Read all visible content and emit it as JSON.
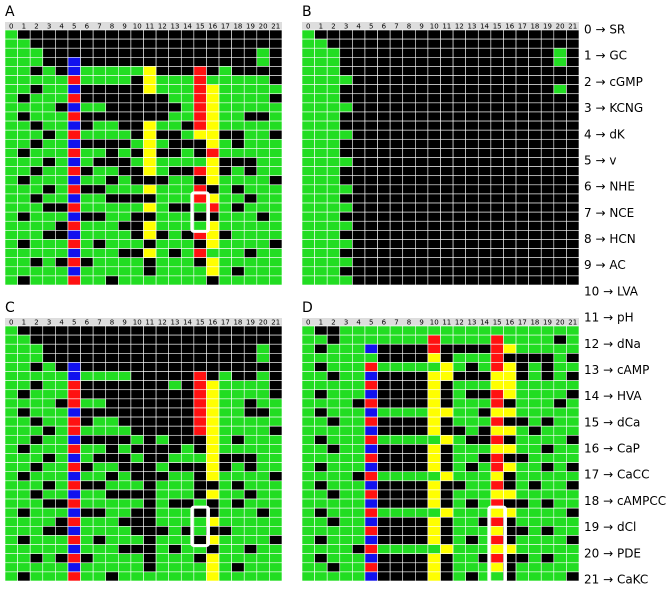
{
  "columns": [
    0,
    1,
    2,
    3,
    4,
    5,
    6,
    7,
    8,
    9,
    10,
    11,
    12,
    13,
    14,
    15,
    16,
    17,
    18,
    19,
    20,
    21
  ],
  "palette": {
    "k": "#000000",
    "g": "#22dd22",
    "r": "#ff1111",
    "b": "#1111ee",
    "y": "#ffff00"
  },
  "panels": [
    {
      "label": "A",
      "rows": [
        "gkkkkkkkkkkkkkkkkkkkkk",
        "ggkkkkkkkkkkkkkkkkkkkk",
        "gggkkkkkkkkkkkkkkkkkgk",
        "gggkkbkkkkkkkkkkkkkkgk",
        "ggkgkbgggggykkkrkgkkkk",
        "gggggrggggkygggrgggggk",
        "ggkggbkkkkkygggryggggg",
        "gkgggrkkkkkkkggryggggk",
        "ggggkbggkkkkkkgryggggg",
        "gkgggrkkkkkkkggryggkkg",
        "ggkggbkggkkyggkryggggg",
        "gggkgrggggkykkgyykkggk",
        "ggkggbkkkkgygkkkygkggg",
        "gkgggrggkgkykkgkrggggg",
        "gggkgbgkkkgyggggykkkgg",
        "ggkggrkggkkygkkrykgkgg",
        "gkgggbggkgkkkggkyggggk",
        "gggkgrkkgggygggrkgkggg",
        "ggkggbggkkkkgggryggkgg",
        "gggkkrgggggygkkgrgkggg",
        "gkgggbkkggkkgggkkgggkg",
        "ggggkrgggkkyggggyggggg",
        "gggkkbggggkykgkrykgggg",
        "gkgggrgkgggkgggkyggggk",
        "gggggbgggkkygkgrgggkgg",
        "ggkgkrkggggkgggkyggggg",
        "gggggbgggggkggggygkggg",
        "gkgggrggkgggggggkggggg"
      ]
    },
    {
      "label": "B",
      "rows": [
        "gkkkkkkkkkkkkkkkkkkkkk",
        "ggkkkkkkkkkkkkkkkkkkkk",
        "gggkkkkkkkkkkkkkkkkkgk",
        "gggkkkkkkkkkkkkkkkkkgk",
        "gggkkkkkkkkkkkkkkkkkkk",
        "ggggkkkkkkkkkkkkkkkkkk",
        "gggkkkkkkkkkkkkkkkkkgk",
        "gggkkkkkkkkkkkkkkkkkkk",
        "ggggkkkkkkkkkkkkkkkkkk",
        "gggkkkkkkkkkkkkkkkkkkk",
        "gggkkkkkkkkkkkkkkkkkkk",
        "ggggkkkkkkkkkkkkkkkkkk",
        "gggkkkkkkkkkkkkkkkkkkk",
        "gggkkkkkkkkkkkkkkkkkkk",
        "ggggkkkkkkkkkkkkkkkkkk",
        "gggkkkkkkkkkkkkkkkkkkk",
        "gggkkkkkkkkkkkkkkkkkkk",
        "ggggkkkkkkkkkkkkkkkkkk",
        "gggkkkkkkkkkkkkkkkkkkk",
        "ggggkkkkkkkkkkkkkkkkkk",
        "gggkkkkkkkkkkkkkkkkkkk",
        "ggggkkkkkkkkkkkkkkkkkk",
        "gggkkkkkkkkkkkkkkkkkkk",
        "ggggkkkkkkkkkkkkkkkkkk",
        "gggkkkkkkkkkkkkkkkkkkk",
        "ggggkkkkkkkkkkkkkkkkkk",
        "gggkkkkkkkkkkkkkkkkkkk",
        "ggggkkkkkkkkkkkkkkkkkk"
      ]
    },
    {
      "label": "C",
      "rows": [
        "gkkkkkkkkkkkkkkkkkkkkk",
        "ggkkkkkkkkkkkkkkkkkkkk",
        "gggkkkkkkkkkkkkkkkkkgk",
        "gggkkkkkkkkkkkkkkkkkgk",
        "ggkgkbkkkkkkkkkkkkkkkk",
        "gggggbggggkkkkkrkgkkgk",
        "ggkggrkkkkkkkgkryggggk",
        "gkgggrkkkkkkkkkryggggk",
        "ggggkrggkkkkkkkryggkgg",
        "gkgggbkkkkkkkkkryggkkg",
        "ggkggrkggkkkkkkryggggg",
        "gggkgrggggkkkkkryggggk",
        "ggkggbkkkkgkgkkkygkggg",
        "gkgggrggkgkkkkgkyggggg",
        "gggkgbgkkkgkkgggykkkgg",
        "ggkggrkggkkkgkkkykgkgg",
        "gkgggbggkgkkkggkyggggk",
        "gggkgrkkgggkgggkkgkggg",
        "ggkggbggkkkkgggkyggkgg",
        "gggkkrgggggkgkkgkgkggg",
        "gkgggbkkggkkgggkkgggkg",
        "ggggkrgggkkkggggyggggg",
        "gggkkbggggkkkgkgkkgggg",
        "gkgggrgkgggkgggkyggggk",
        "gggggbgggkkkgkggkggkgg",
        "ggkgkrkggggkgggkyggggg",
        "gggggbgggggkggggygkggg",
        "gkgggrggkgggggggyggggg"
      ]
    },
    {
      "label": "D",
      "rows": [
        "gkkggggggggggggggggggg",
        "ggkgggggggrggggrggggkg",
        "gkgggbkkkkrkkkkryggggg",
        "ggggggkkkkykgggrkkkkgk",
        "gkgggrgggggygkgrykgkgg",
        "ggkggbkkkkyykkkyykgkgk",
        "gggggrkkkkykgggyyggggg",
        "gkgggbkkkkykgkkryggggk",
        "ggggkrkkkkykgggrkgggkg",
        "gkgggbggggyyggkyyggggg",
        "ggkggrkkkkykgggrkkgkgg",
        "gggggbkkkkykkgkyygkggg",
        "gkgggrgggggygkkrkggggk",
        "ggkggbkkkkykgggyyggkgg",
        "gggggrkkkkykggkrkkgggg",
        "gkgggbkkkkykgkgryggkgk",
        "ggggkrgggggygggykggggg",
        "gkgggbkkkkykkggrkgkggk",
        "ggkggrkkkkykgggyyggggg",
        "gggggbkkkkykgkgrkkgkgg",
        "gkgggrgggggygggyyggggk",
        "ggkggbkkkkykggkrkggggg",
        "gggggrkkkkykgggykkgkgg",
        "gkgggbkkkkykgkgrkggggk",
        "ggggkrgggggygggyyggggg",
        "gkgggbkkkkykggkrkkgkgg",
        "ggkggrkkkkykgggykggggg",
        "gggggbkkkkykgkggkggggk"
      ]
    }
  ],
  "labels": [
    "0 → SR",
    "1 → GC",
    "2 → cGMP",
    "3 → KCNG",
    "4 → dK",
    "5 → v",
    "6 → NHE",
    "7 → NCE",
    "8 → HCN",
    "9 → AC",
    "10 → LVA",
    "11 → pH",
    "12 → dNa",
    "13 → cAMP",
    "14 → HVA",
    "15 → dCa",
    "16 → CaP",
    "17 → CaCC",
    "18 → cAMPCC",
    "19 → dCl",
    "20 → PDE",
    "21 → CaKC"
  ]
}
